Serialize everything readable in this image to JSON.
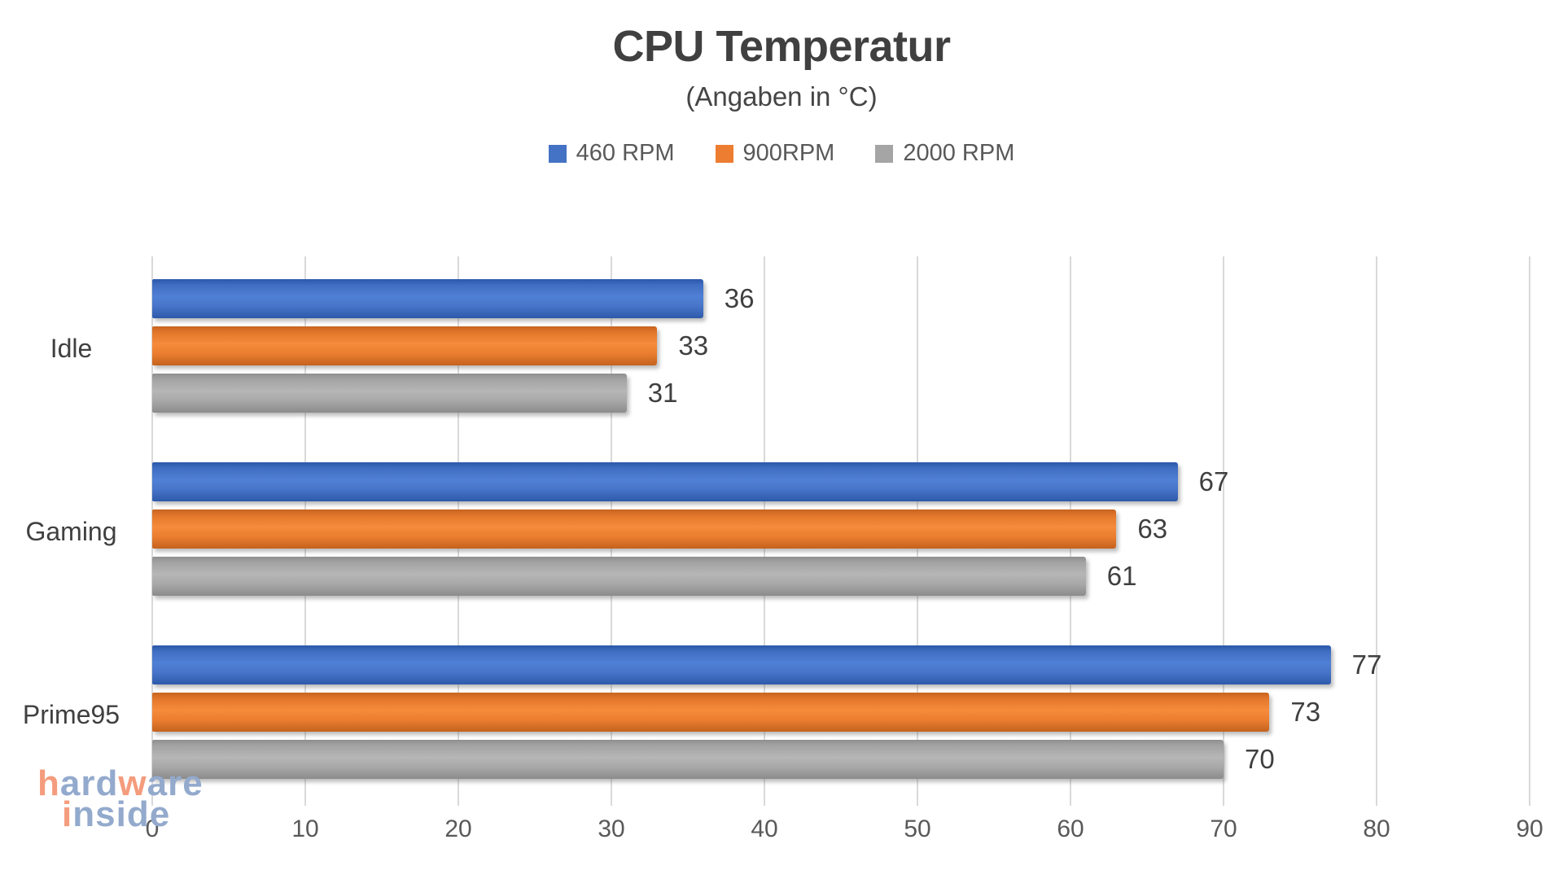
{
  "title": "CPU Temperatur",
  "subtitle": "(Angaben in °C)",
  "legend": [
    {
      "label": "460 RPM",
      "color": "#4472C4"
    },
    {
      "label": "900RPM",
      "color": "#ED7D31"
    },
    {
      "label": "2000 RPM",
      "color": "#A5A5A5"
    }
  ],
  "chart_data": {
    "type": "bar",
    "orientation": "horizontal",
    "title": "CPU Temperatur",
    "subtitle": "(Angaben in °C)",
    "categories": [
      "Idle",
      "Gaming",
      "Prime95"
    ],
    "series": [
      {
        "name": "460 RPM",
        "color": "#4472C4",
        "values": [
          36,
          67,
          77
        ]
      },
      {
        "name": "900RPM",
        "color": "#ED7D31",
        "values": [
          33,
          63,
          73
        ]
      },
      {
        "name": "2000 RPM",
        "color": "#A5A5A5",
        "values": [
          31,
          61,
          70
        ]
      }
    ],
    "xlim": [
      0,
      90
    ],
    "x_ticks": [
      0,
      10,
      20,
      30,
      40,
      50,
      60,
      70,
      80,
      90
    ],
    "grid": "vertical",
    "legend_position": "top",
    "value_labels": true
  },
  "watermark": {
    "lines": [
      {
        "text": "hardware",
        "letter_colors": [
          "coral",
          "blue",
          "blue",
          "blue",
          "coral",
          "blue",
          "blue",
          "blue"
        ]
      },
      {
        "text": "inside",
        "letter_colors": [
          "coral",
          "blue",
          "blue",
          "blue",
          "blue",
          "blue"
        ]
      }
    ],
    "palette": {
      "coral": "#F49C7D",
      "blue": "#93AACD"
    }
  },
  "colors": {
    "title_text": "#404040",
    "axis_text": "#595959",
    "gridline": "#D9D9D9",
    "background": "#FFFFFF"
  }
}
